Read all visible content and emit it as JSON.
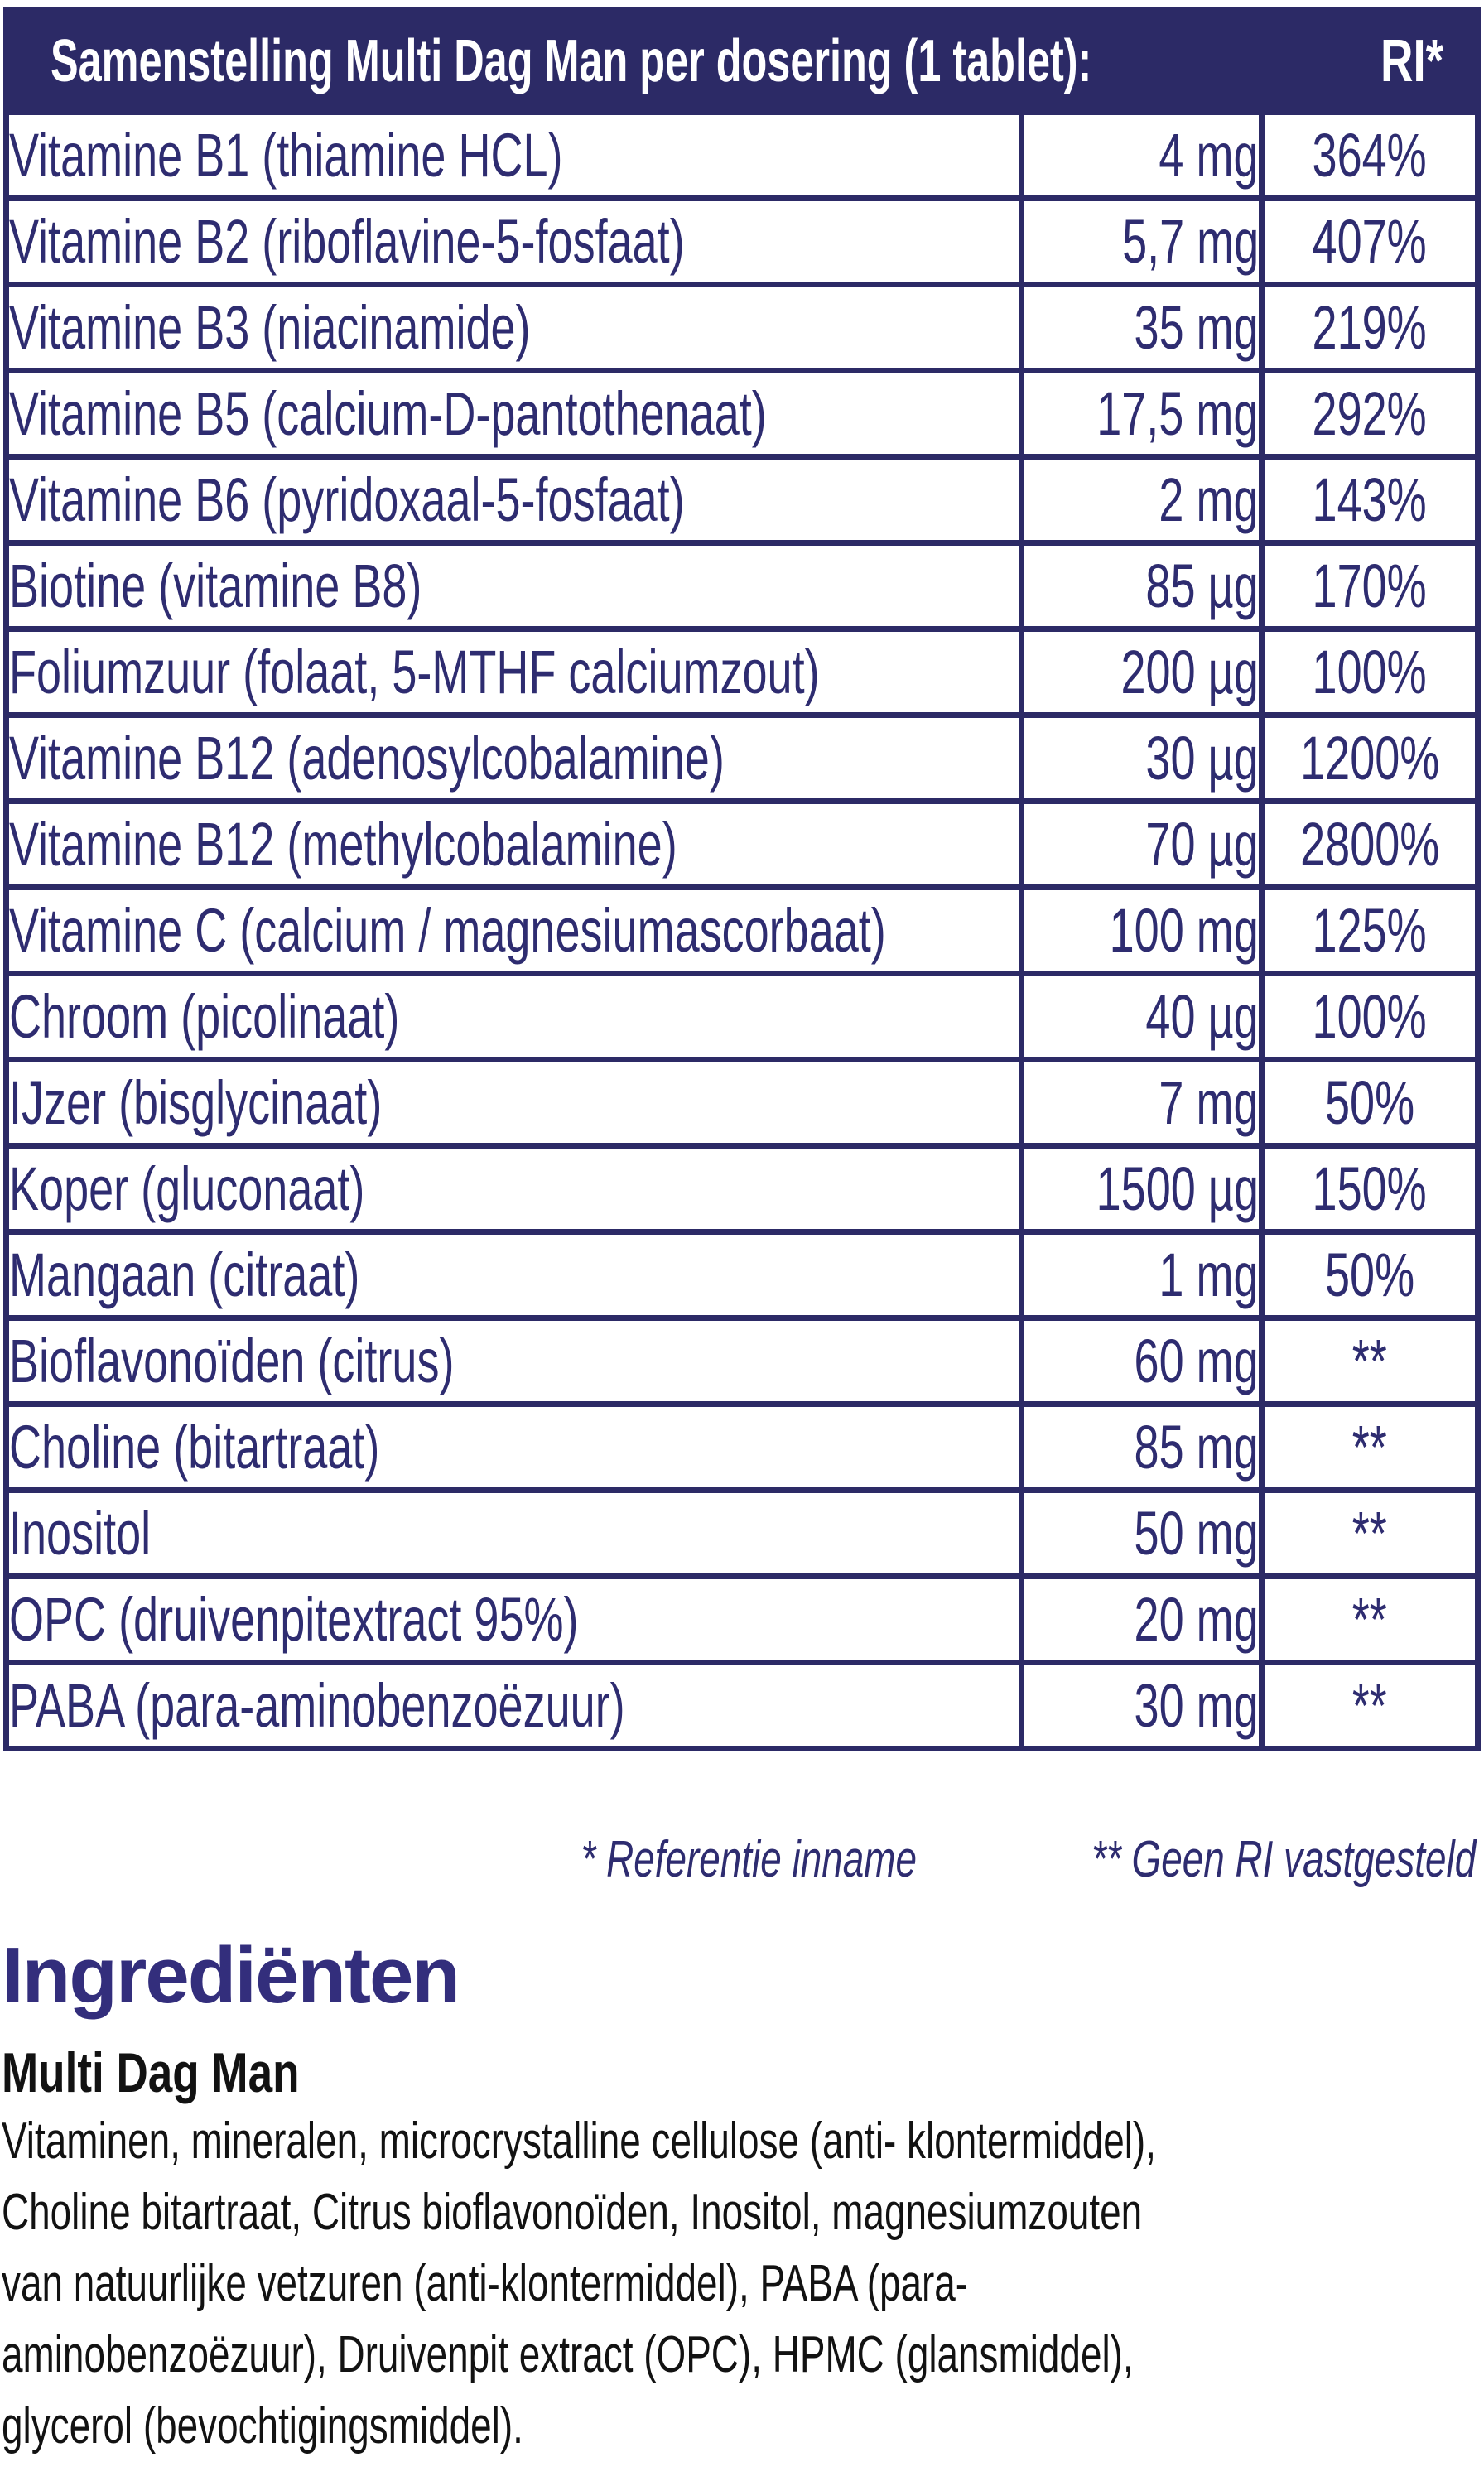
{
  "colors": {
    "navy": "#2c2a66",
    "row_text": "#2e2c70",
    "heading_indigo": "#332e7c",
    "ink": "#121212",
    "header_text": "#ffffff"
  },
  "table": {
    "title": "Samenstelling Multi Dag Man per dosering (1 tablet):",
    "ri_column_label": "RI*",
    "rows": [
      {
        "name": "Vitamine B1 (thiamine HCL)",
        "amount": "4 mg",
        "ri": "364%"
      },
      {
        "name": "Vitamine B2 (riboflavine-5-fosfaat)",
        "amount": "5,7 mg",
        "ri": "407%"
      },
      {
        "name": "Vitamine B3 (niacinamide)",
        "amount": "35 mg",
        "ri": "219%"
      },
      {
        "name": "Vitamine B5 (calcium-D-pantothenaat)",
        "amount": "17,5 mg",
        "ri": "292%"
      },
      {
        "name": "Vitamine B6 (pyridoxaal-5-fosfaat)",
        "amount": "2 mg",
        "ri": "143%"
      },
      {
        "name": "Biotine (vitamine B8)",
        "amount": "85 µg",
        "ri": "170%"
      },
      {
        "name": "Foliumzuur (folaat, 5-MTHF calciumzout)",
        "amount": "200 µg",
        "ri": "100%"
      },
      {
        "name": "Vitamine B12 (adenosylcobalamine)",
        "amount": "30 µg",
        "ri": "1200%"
      },
      {
        "name": "Vitamine B12 (methylcobalamine)",
        "amount": "70 µg",
        "ri": "2800%"
      },
      {
        "name": "Vitamine C (calcium / magnesiumascorbaat)",
        "amount": "100 mg",
        "ri": "125%"
      },
      {
        "name": "Chroom (picolinaat)",
        "amount": "40 µg",
        "ri": "100%"
      },
      {
        "name": "IJzer (bisglycinaat)",
        "amount": "7 mg",
        "ri": "50%"
      },
      {
        "name": "Koper (gluconaat)",
        "amount": "1500 µg",
        "ri": "150%"
      },
      {
        "name": "Mangaan (citraat)",
        "amount": "1 mg",
        "ri": "50%"
      },
      {
        "name": "Bioflavonoïden (citrus)",
        "amount": "60 mg",
        "ri": "**"
      },
      {
        "name": "Choline (bitartraat)",
        "amount": "85 mg",
        "ri": "**"
      },
      {
        "name": "Inositol",
        "amount": "50 mg",
        "ri": "**"
      },
      {
        "name": "OPC (druivenpitextract 95%)",
        "amount": "20 mg",
        "ri": "**"
      },
      {
        "name": "PABA (para-aminobenzoëzuur)",
        "amount": "30 mg",
        "ri": "**"
      }
    ]
  },
  "footnotes": {
    "reference": "* Referentie inname",
    "no_ri": "** Geen RI vastgesteld"
  },
  "ingredients": {
    "heading": "Ingrediënten",
    "product_name": "Multi Dag Man",
    "lines": [
      "Vitaminen, mineralen, microcrystalline cellulose (anti- klontermiddel),",
      "Choline bitartraat, Citrus bioflavonoïden, Inositol, magnesiumzouten",
      "van natuurlijke vetzuren (anti-klontermiddel), PABA (para-",
      "aminobenzoëzuur), Druivenpit extract (OPC), HPMC (glansmiddel),",
      "glycerol (bevochtigingsmiddel)."
    ]
  }
}
